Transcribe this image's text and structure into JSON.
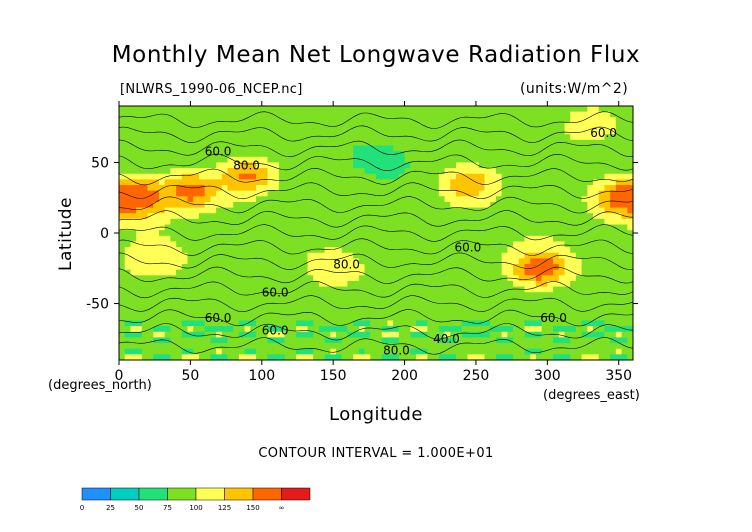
{
  "header": {
    "title": "Monthly Mean Net Longwave Radiation Flux",
    "file_label": "[NLWRS_1990-06_NCEP.nc]",
    "units_label": "(units:W/m^2)"
  },
  "axes": {
    "xlabel": "Longitude",
    "ylabel": "Latitude",
    "x_axis_name": "(degrees_north)",
    "x_axis_unit": "(degrees_east)"
  },
  "footer": {
    "contour_interval": "CONTOUR INTERVAL = 1.000E+01"
  },
  "colors": {
    "scale": [
      "#1e90ff",
      "#00cfc0",
      "#22e07a",
      "#7de022",
      "#ffff55",
      "#ffc400",
      "#ff6600",
      "#e51b1b"
    ],
    "background": "#ffffff",
    "plot_border": "#000000"
  },
  "chart_data": {
    "type": "heatmap",
    "title": "Monthly Mean Net Longwave Radiation Flux",
    "subtitle": "[NLWRS_1990-06_NCEP.nc]",
    "units": "(units:W/m^2)",
    "xlabel": "Longitude",
    "ylabel": "Latitude",
    "xlim": [
      0,
      360
    ],
    "ylim": [
      -90,
      90
    ],
    "x_ticks": [
      0,
      50,
      100,
      150,
      200,
      250,
      300,
      350
    ],
    "x_tick_labels": [
      "0",
      "50",
      "100",
      "150",
      "200",
      "250",
      "300",
      "350"
    ],
    "y_ticks": [
      50,
      0,
      -50
    ],
    "y_tick_labels": [
      "50",
      "0",
      "-50"
    ],
    "contour_interval": 10,
    "colorbar": {
      "bounds": [
        0,
        25,
        50,
        75,
        100,
        125,
        150
      ],
      "labels": [
        "0",
        "25",
        "50",
        "75",
        "100",
        "125",
        "150",
        "∞"
      ]
    },
    "contour_labels": [
      {
        "lon": 60,
        "lat": 55,
        "text": "60.0"
      },
      {
        "lon": 80,
        "lat": 45,
        "text": "80.0"
      },
      {
        "lon": 235,
        "lat": -13,
        "text": "60.0"
      },
      {
        "lon": 150,
        "lat": -25,
        "text": "80.0"
      },
      {
        "lon": 100,
        "lat": -45,
        "text": "60.0"
      },
      {
        "lon": 60,
        "lat": -63,
        "text": "60.0"
      },
      {
        "lon": 100,
        "lat": -72,
        "text": "60.0"
      },
      {
        "lon": 295,
        "lat": -63,
        "text": "60.0"
      },
      {
        "lon": 220,
        "lat": -78,
        "text": "40.0"
      },
      {
        "lon": 185,
        "lat": -86,
        "text": "80.0"
      },
      {
        "lon": 330,
        "lat": 68,
        "text": "60.0"
      }
    ],
    "regions": [
      {
        "lon": 15,
        "lat": 25,
        "value": 150
      },
      {
        "lon": 50,
        "lat": 30,
        "value": 140
      },
      {
        "lon": 90,
        "lat": 40,
        "value": 130
      },
      {
        "lon": 245,
        "lat": 35,
        "value": 120
      },
      {
        "lon": 355,
        "lat": 25,
        "value": 150
      },
      {
        "lon": 25,
        "lat": -20,
        "value": 100
      },
      {
        "lon": 150,
        "lat": -25,
        "value": 95
      },
      {
        "lon": 295,
        "lat": -25,
        "value": 150
      },
      {
        "lon": 330,
        "lat": 75,
        "value": 95
      },
      {
        "lon": 185,
        "lat": 50,
        "value": 40
      },
      {
        "lon": 185,
        "lat": 5,
        "value": 50
      },
      {
        "lon": 185,
        "lat": -55,
        "value": 65
      }
    ]
  }
}
